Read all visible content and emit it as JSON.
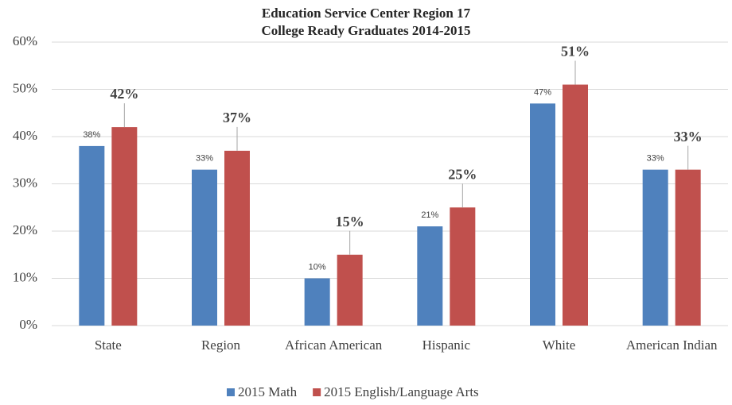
{
  "chart_data": {
    "type": "bar",
    "title": [
      "Education Service Center Region 17",
      "College Ready Graduates 2014-2015"
    ],
    "categories": [
      "State",
      "Region",
      "African American",
      "Hispanic",
      "White",
      "American Indian"
    ],
    "series": [
      {
        "name": "2015 Math",
        "color": "#4f81bd",
        "values": [
          38,
          33,
          10,
          21,
          47,
          33
        ],
        "value_labels": [
          "38%",
          "33%",
          "10%",
          "21%",
          "47%",
          "33%"
        ]
      },
      {
        "name": "2015 English/Language Arts",
        "color": "#c0504d",
        "values": [
          42,
          37,
          15,
          25,
          51,
          33
        ],
        "value_labels": [
          "42%",
          "37%",
          "15%",
          "25%",
          "51%",
          "33%"
        ]
      }
    ],
    "ylim": [
      0,
      60
    ],
    "yticks": [
      {
        "value": 0,
        "label": "0%"
      },
      {
        "value": 10,
        "label": "10%"
      },
      {
        "value": 20,
        "label": "20%"
      },
      {
        "value": 30,
        "label": "30%"
      },
      {
        "value": 40,
        "label": "40%"
      },
      {
        "value": 50,
        "label": "50%"
      },
      {
        "value": 60,
        "label": "60%"
      }
    ],
    "grid": true,
    "legend": "bottom"
  }
}
